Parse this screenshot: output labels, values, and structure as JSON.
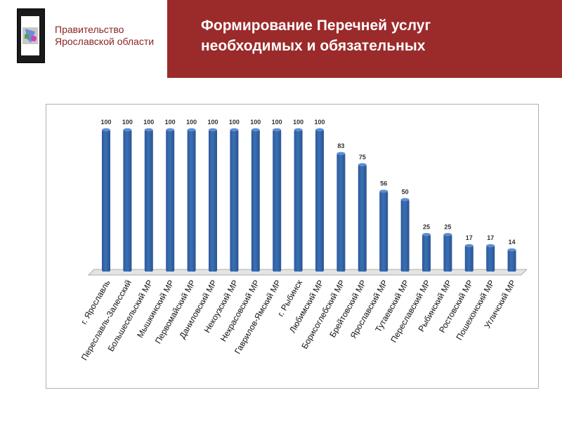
{
  "header": {
    "org_line1": "Правительство",
    "org_line2": "Ярославской области",
    "title_line1": "Формирование Перечней услуг",
    "title_line2": "необходимых и обязательных",
    "band_color": "#9b2a2a"
  },
  "chart_data": {
    "type": "bar",
    "title": "",
    "xlabel": "",
    "ylabel": "",
    "ylim": [
      0,
      100
    ],
    "grid": false,
    "bar_color": "#3a6fb5",
    "categories": [
      "г. Ярославль",
      "Переславль-Залесский",
      "Большесельский МР",
      "Мышкинский МР",
      "Первомайский МР",
      "Даниловский МР",
      "Некоузский МР",
      "Некрасовский МР",
      "Гаврилов-Ямский МР",
      "г. Рыбинск",
      "Любимский МР",
      "Борисоглебский МР",
      "Брейтовский МР",
      "Ярославский МР",
      "Тутаевский МР",
      "Переславский МР",
      "Рыбинский МР",
      "Ростовский МР",
      "Пошехонский МР",
      "Угличский МР"
    ],
    "values": [
      100,
      100,
      100,
      100,
      100,
      100,
      100,
      100,
      100,
      100,
      100,
      83,
      75,
      56,
      50,
      25,
      25,
      17,
      17,
      14
    ]
  }
}
